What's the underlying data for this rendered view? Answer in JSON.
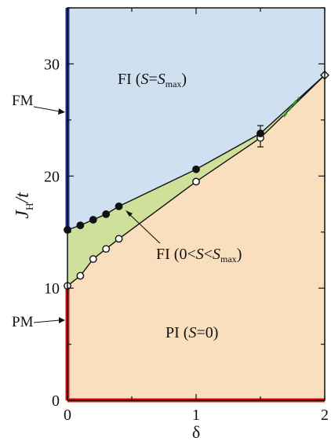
{
  "chart_data": {
    "type": "scatter",
    "title": "",
    "xlabel": "δ",
    "ylabel": {
      "main": "J",
      "sub": "H",
      "tail": "/t"
    },
    "xlim": [
      0,
      2
    ],
    "ylim": [
      0,
      35
    ],
    "x_ticks": [
      0,
      1,
      2
    ],
    "y_ticks": [
      0,
      10,
      20,
      30
    ],
    "grid": false,
    "series": [
      {
        "marker": "filled-circle",
        "x": [
          0,
          0.1,
          0.2,
          0.3,
          0.4,
          1.0,
          1.5
        ],
        "y": [
          15.2,
          15.6,
          16.1,
          16.6,
          17.3,
          20.6,
          23.8
        ]
      },
      {
        "marker": "open-circle",
        "x": [
          0,
          0.1,
          0.2,
          0.3,
          0.4,
          1.0,
          1.5
        ],
        "y": [
          10.2,
          11.1,
          12.6,
          13.5,
          14.4,
          19.5,
          23.4
        ]
      },
      {
        "marker": "open-diamond",
        "x": [
          2.0
        ],
        "y": [
          29.0
        ]
      }
    ],
    "error_bars": [
      {
        "x": 1.5,
        "y_low": 22.6,
        "y_high": 24.5
      }
    ],
    "regions": [
      {
        "name": "FI",
        "label": {
          "pre": "FI (",
          "v1": "S",
          "eq": "=",
          "v2": "S",
          "sub": "max",
          "post": ")"
        },
        "color": "#cfe0f0"
      },
      {
        "name": "FI-mid",
        "label": {
          "pre": "FI (0<",
          "v1": "S",
          "lt": "<",
          "v2": "S",
          "sub": "max",
          "post": ")"
        },
        "color": "#cfe09a"
      },
      {
        "name": "PI",
        "label": {
          "pre": "PI (",
          "v1": "S",
          "eq": "=0",
          "post": ")"
        },
        "color": "#f9dfbe"
      }
    ],
    "annotations": [
      {
        "text": "FM",
        "color": "#1f2f9a"
      },
      {
        "text": "PM",
        "color": "#dd1111"
      }
    ],
    "extrapolation": {
      "x": [
        1.68,
        1.8
      ],
      "y": [
        25.3,
        27.0
      ],
      "color": "#2a9a2a",
      "style": "dashed"
    }
  }
}
